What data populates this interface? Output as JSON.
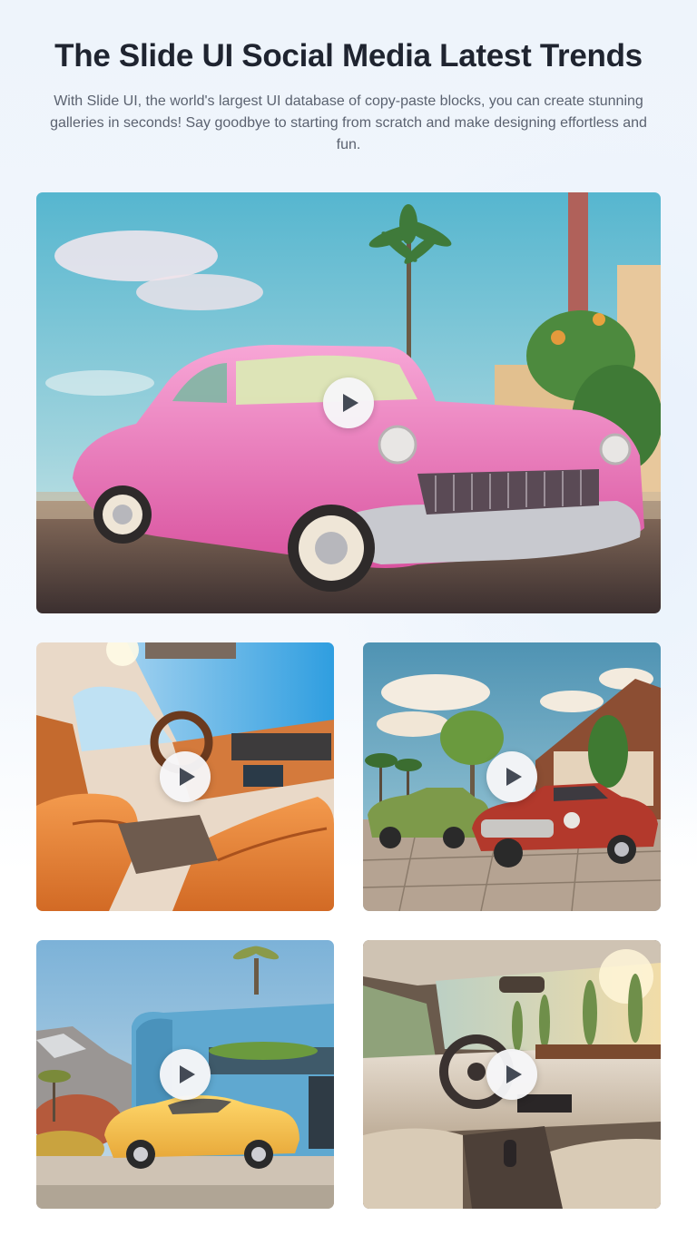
{
  "header": {
    "title": "The Slide UI Social Media Latest Trends",
    "subtitle": "With Slide UI, the world's largest UI database of copy-paste blocks, you can create stunning galleries in seconds! Say goodbye to starting from scratch and make designing effortless and fun."
  },
  "gallery": {
    "items": [
      {
        "id": "pink-classic-car",
        "icon": "play-icon"
      },
      {
        "id": "orange-leather-interior",
        "icon": "play-icon"
      },
      {
        "id": "vintage-cars-street",
        "icon": "play-icon"
      },
      {
        "id": "yellow-sports-car-blue-house",
        "icon": "play-icon"
      },
      {
        "id": "beige-car-interior",
        "icon": "play-icon"
      }
    ]
  },
  "colors": {
    "title": "#1f2430",
    "subtitle": "#5b6270",
    "play_button_bg": "#f6f6f8",
    "play_glyph": "#444a55"
  }
}
